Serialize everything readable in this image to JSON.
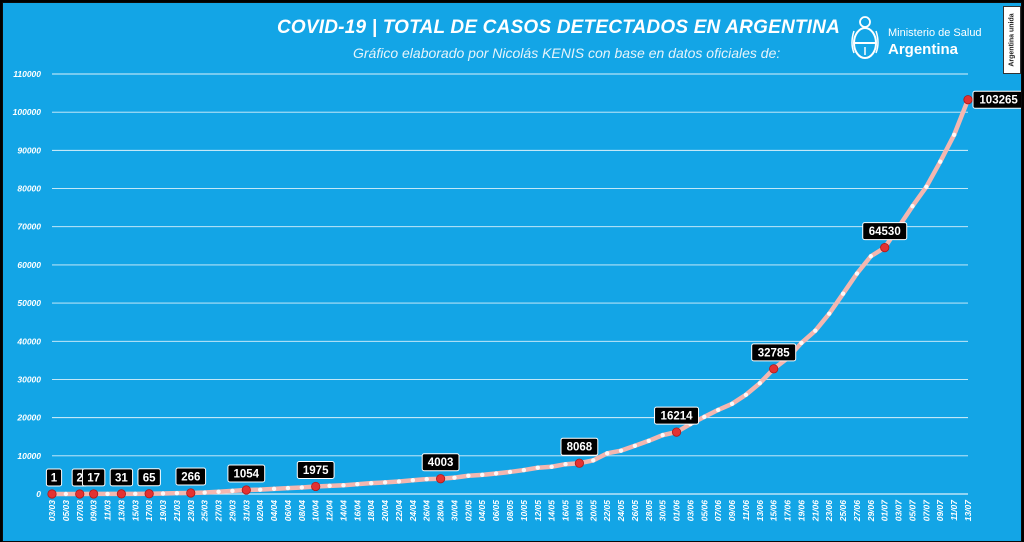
{
  "header": {
    "title": "COVID-19  |  TOTAL DE CASOS DETECTADOS EN ARGENTINA",
    "subtitle": "Gráfico elaborado por Nicolás KENIS con base en datos oficiales de:",
    "logo_line1": "Ministerio de Salud",
    "logo_line2": "Argentina",
    "badge": "Argentina unida"
  },
  "colors": {
    "background": "#13a5e6",
    "line": "#f4b7b0",
    "point": "#e33232",
    "label_box": "#000000",
    "label_text": "#ffffff",
    "grid": "#ffffff"
  },
  "chart_data": {
    "type": "line",
    "title": "COVID-19  |  TOTAL DE CASOS DETECTADOS EN ARGENTINA",
    "xlabel": "",
    "ylabel": "",
    "ylim": [
      0,
      110000
    ],
    "yticks": [
      0,
      10000,
      20000,
      30000,
      40000,
      50000,
      60000,
      70000,
      80000,
      90000,
      100000,
      110000
    ],
    "grid": true,
    "x_start": "03/03",
    "x_end": "13/07",
    "x_tick_labels": [
      "03/03",
      "05/03",
      "07/03",
      "09/03",
      "11/03",
      "13/03",
      "15/03",
      "17/03",
      "19/03",
      "21/03",
      "23/03",
      "25/03",
      "27/03",
      "29/03",
      "31/03",
      "02/04",
      "04/04",
      "06/04",
      "08/04",
      "10/04",
      "12/04",
      "14/04",
      "16/04",
      "18/04",
      "20/04",
      "22/04",
      "24/04",
      "26/04",
      "28/04",
      "30/04",
      "02/05",
      "04/05",
      "06/05",
      "08/05",
      "10/05",
      "12/05",
      "14/05",
      "16/05",
      "18/05",
      "20/05",
      "22/05",
      "24/05",
      "26/05",
      "28/05",
      "30/05",
      "01/06",
      "03/06",
      "05/06",
      "07/06",
      "09/06",
      "11/06",
      "13/06",
      "15/06",
      "17/06",
      "19/06",
      "21/06",
      "23/06",
      "25/06",
      "27/06",
      "29/06",
      "01/07",
      "03/07",
      "05/07",
      "07/07",
      "09/07",
      "11/07",
      "13/07"
    ],
    "series": [
      {
        "points": [
          [
            "03/03",
            1
          ],
          [
            "05/03",
            1
          ],
          [
            "07/03",
            2
          ],
          [
            "09/03",
            17
          ],
          [
            "11/03",
            19
          ],
          [
            "13/03",
            31
          ],
          [
            "15/03",
            45
          ],
          [
            "17/03",
            65
          ],
          [
            "19/03",
            128
          ],
          [
            "21/03",
            225
          ],
          [
            "23/03",
            266
          ],
          [
            "25/03",
            387
          ],
          [
            "27/03",
            589
          ],
          [
            "29/03",
            820
          ],
          [
            "31/03",
            1054
          ],
          [
            "02/04",
            1133
          ],
          [
            "04/04",
            1353
          ],
          [
            "06/04",
            1554
          ],
          [
            "08/04",
            1715
          ],
          [
            "10/04",
            1975
          ],
          [
            "12/04",
            2142
          ],
          [
            "14/04",
            2277
          ],
          [
            "16/04",
            2571
          ],
          [
            "18/04",
            2839
          ],
          [
            "20/04",
            3031
          ],
          [
            "22/04",
            3288
          ],
          [
            "24/04",
            3607
          ],
          [
            "26/04",
            3892
          ],
          [
            "28/04",
            4003
          ],
          [
            "30/04",
            4285
          ],
          [
            "02/05",
            4783
          ],
          [
            "04/05",
            5020
          ],
          [
            "06/05",
            5371
          ],
          [
            "08/05",
            5776
          ],
          [
            "10/05",
            6265
          ],
          [
            "12/05",
            6879
          ],
          [
            "14/05",
            7134
          ],
          [
            "16/05",
            7805
          ],
          [
            "18/05",
            8068
          ],
          [
            "20/05",
            8809
          ],
          [
            "22/05",
            10649
          ],
          [
            "24/05",
            11353
          ],
          [
            "26/05",
            12628
          ],
          [
            "28/05",
            13933
          ],
          [
            "30/05",
            15419
          ],
          [
            "01/06",
            16214
          ],
          [
            "03/06",
            18319
          ],
          [
            "05/06",
            20197
          ],
          [
            "07/06",
            22020
          ],
          [
            "09/06",
            23620
          ],
          [
            "11/06",
            25987
          ],
          [
            "13/06",
            29016
          ],
          [
            "15/06",
            32785
          ],
          [
            "17/06",
            35552
          ],
          [
            "19/06",
            39570
          ],
          [
            "21/06",
            42785
          ],
          [
            "23/06",
            47216
          ],
          [
            "25/06",
            52457
          ],
          [
            "27/06",
            57744
          ],
          [
            "29/06",
            62268
          ],
          [
            "01/07",
            64530
          ],
          [
            "03/07",
            69941
          ],
          [
            "05/07",
            75376
          ],
          [
            "07/07",
            80447
          ],
          [
            "09/07",
            87030
          ],
          [
            "11/07",
            94060
          ],
          [
            "13/07",
            103265
          ]
        ]
      }
    ],
    "labeled_points": [
      {
        "x": "03/03",
        "value": 1,
        "label": "1"
      },
      {
        "x": "07/03",
        "value": 2,
        "label": "2"
      },
      {
        "x": "09/03",
        "value": 17,
        "label": "17"
      },
      {
        "x": "13/03",
        "value": 31,
        "label": "31"
      },
      {
        "x": "17/03",
        "value": 65,
        "label": "65"
      },
      {
        "x": "23/03",
        "value": 266,
        "label": "266"
      },
      {
        "x": "31/03",
        "value": 1054,
        "label": "1054"
      },
      {
        "x": "10/04",
        "value": 1975,
        "label": "1975"
      },
      {
        "x": "28/04",
        "value": 4003,
        "label": "4003"
      },
      {
        "x": "18/05",
        "value": 8068,
        "label": "8068"
      },
      {
        "x": "01/06",
        "value": 16214,
        "label": "16214"
      },
      {
        "x": "15/06",
        "value": 32785,
        "label": "32785"
      },
      {
        "x": "01/07",
        "value": 64530,
        "label": "64530"
      },
      {
        "x": "13/07",
        "value": 103265,
        "label": "103265"
      }
    ]
  }
}
